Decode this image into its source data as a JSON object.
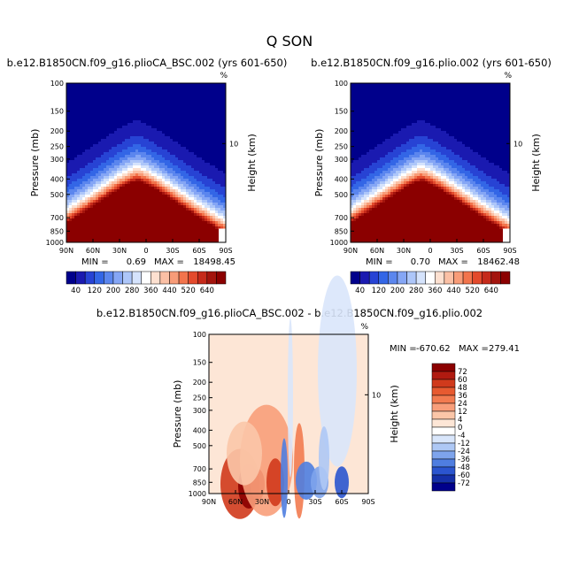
{
  "figure": {
    "title": "Q SON"
  },
  "chart_data": [
    {
      "type": "heatmap",
      "title": "b.e12.B1850CN.f09_g16.plioCA_BSC.002 (yrs 601-650)",
      "units_label": "%",
      "ylabel": "Pressure (mb)",
      "y2label": "Height (km)",
      "x_ticks": [
        "90N",
        "60N",
        "30N",
        "0",
        "30S",
        "60S",
        "90S"
      ],
      "y_ticks": [
        "100",
        "150",
        "200",
        "250",
        "300",
        "400",
        "500",
        "700",
        "850",
        "1000"
      ],
      "y2_ticks": [
        "10"
      ],
      "stats": {
        "min_label": "MIN =",
        "min": "0.69",
        "max_label": "MAX =",
        "max": "18498.45"
      },
      "colorbar": {
        "levels": [
          0,
          40,
          80,
          120,
          160,
          200,
          240,
          280,
          320,
          360,
          400,
          440,
          480,
          520,
          560,
          600,
          640,
          680
        ],
        "labels": [
          "40",
          "120",
          "200",
          "280",
          "360",
          "440",
          "520",
          "640"
        ],
        "colors": [
          "#00008b",
          "#1a1ab0",
          "#2743d4",
          "#3366e6",
          "#5b86ee",
          "#85a6f5",
          "#adc6f9",
          "#d5e3fc",
          "#ffffff",
          "#fde0d0",
          "#fbc0a5",
          "#f89c78",
          "#f2744c",
          "#e34a2c",
          "#c52a1a",
          "#a3140d",
          "#8b0000"
        ]
      }
    },
    {
      "type": "heatmap",
      "title": "b.e12.B1850CN.f09_g16.plio.002 (yrs 601-650)",
      "units_label": "%",
      "ylabel": "Pressure (mb)",
      "y2label": "Height (km)",
      "x_ticks": [
        "90N",
        "60N",
        "30N",
        "0",
        "30S",
        "60S",
        "90S"
      ],
      "y_ticks": [
        "100",
        "150",
        "200",
        "250",
        "300",
        "400",
        "500",
        "700",
        "850",
        "1000"
      ],
      "y2_ticks": [
        "10"
      ],
      "stats": {
        "min_label": "MIN =",
        "min": "0.70",
        "max_label": "MAX =",
        "max": "18462.48"
      },
      "colorbar": {
        "levels": [
          0,
          40,
          80,
          120,
          160,
          200,
          240,
          280,
          320,
          360,
          400,
          440,
          480,
          520,
          560,
          600,
          640,
          680
        ],
        "labels": [
          "40",
          "120",
          "200",
          "280",
          "360",
          "440",
          "520",
          "640"
        ],
        "colors": [
          "#00008b",
          "#1a1ab0",
          "#2743d4",
          "#3366e6",
          "#5b86ee",
          "#85a6f5",
          "#adc6f9",
          "#d5e3fc",
          "#ffffff",
          "#fde0d0",
          "#fbc0a5",
          "#f89c78",
          "#f2744c",
          "#e34a2c",
          "#c52a1a",
          "#a3140d",
          "#8b0000"
        ]
      }
    },
    {
      "type": "heatmap",
      "title": "b.e12.B1850CN.f09_g16.plioCA_BSC.002 - b.e12.B1850CN.f09_g16.plio.002",
      "units_label": "%",
      "ylabel": "Pressure (mb)",
      "y2label": "Height (km)",
      "x_ticks": [
        "90N",
        "60N",
        "30N",
        "0",
        "30S",
        "60S",
        "90S"
      ],
      "y_ticks": [
        "100",
        "150",
        "200",
        "250",
        "300",
        "400",
        "500",
        "700",
        "850",
        "1000"
      ],
      "y2_ticks": [
        "10"
      ],
      "stats": {
        "min_label": "MIN =",
        "min": "-670.62",
        "max_label": "MAX =",
        "max": "279.41"
      },
      "colorbar": {
        "labels": [
          "72",
          "60",
          "48",
          "36",
          "24",
          "12",
          "4",
          "0",
          "-4",
          "-12",
          "-24",
          "-36",
          "-48",
          "-60",
          "-72"
        ],
        "colors": [
          "#8b0000",
          "#b01a10",
          "#d03a1c",
          "#e75a30",
          "#f27b50",
          "#f89e7a",
          "#fbc6a8",
          "#fde6d6",
          "#ffffff",
          "#d9e6fb",
          "#aec8f5",
          "#7ea4ec",
          "#4f7ee0",
          "#2b55cf",
          "#1530a8",
          "#00008b"
        ]
      }
    }
  ]
}
